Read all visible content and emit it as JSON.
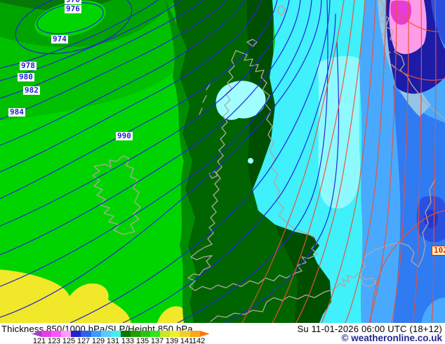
{
  "titlebar": {
    "product": "Thickness 850/1000 hPa/SLP/Height 850 hPa",
    "valid": "Su 11-01-2026 06:00 UTC (18+12)",
    "copyright": "© weatheronline.co.uk"
  },
  "legend": {
    "values": [
      "121",
      "123",
      "125",
      "127",
      "129",
      "131",
      "133",
      "135",
      "137",
      "139",
      "141",
      "142"
    ],
    "colors": [
      "#a83cc8",
      "#e83ce8",
      "#ff52ff",
      "#ff9cff",
      "#2222cc",
      "#2b62e8",
      "#3c9cff",
      "#55ccff",
      "#3ff0f0",
      "#0a7800",
      "#1e9e00",
      "#28c410",
      "#32e61e",
      "#c8e820",
      "#f0f028",
      "#f0d028",
      "#f8a818",
      "#f87808"
    ]
  },
  "map": {
    "isobar_labels": [
      {
        "text": "976"
      },
      {
        "text": "976"
      },
      {
        "text": "974"
      },
      {
        "text": "978"
      },
      {
        "text": "980"
      },
      {
        "text": "982"
      },
      {
        "text": "984"
      },
      {
        "text": "990"
      }
    ],
    "height_label": {
      "text": "102"
    },
    "colors": {
      "bright_green": "#00d400",
      "green_mid": "#00c000",
      "green_dark": "#00a400",
      "green_deep": "#067806",
      "band_dark": "#006400",
      "band_darker": "#004f00",
      "band_edge": "#008c00",
      "yellow": "#f0e828",
      "cyan_band": "#40f0fa",
      "cyan_light": "#a0feff",
      "cyan_pale": "#8efaff",
      "blue_light": "#49a9ff",
      "blue_mid": "#2f7bf2",
      "blue_gray": "#93c3e6",
      "navy": "#1c1ca8",
      "royal": "#2a50e0",
      "royal_dark": "#2339cc",
      "pink": "#ff9ce8",
      "magenta": "#e83cd8",
      "isobar_blue": "#2326d6",
      "height_red": "#ee4f38",
      "coast_gray": "#b2a79e"
    }
  }
}
